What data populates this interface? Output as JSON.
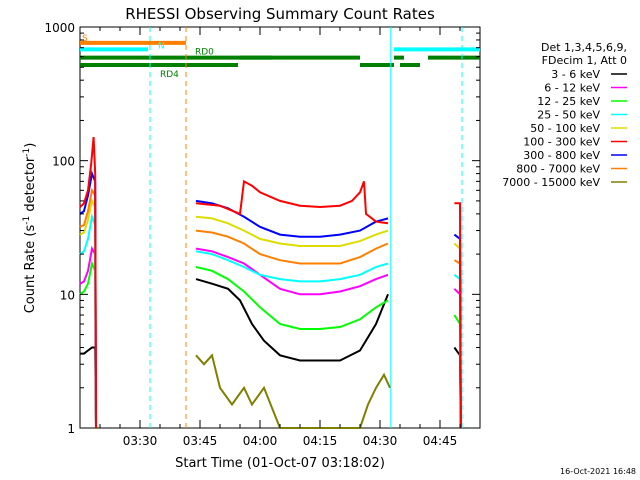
{
  "chart_data": {
    "type": "line",
    "title": "RHESSI Observing Summary Count Rates",
    "xlabel": "Start Time (01-Oct-07 03:18:02)",
    "ylabel_main": "Count Rate (s",
    "ylabel_sup1": "-1",
    "ylabel_mid": " detector",
    "ylabel_sup2": "-1",
    "ylabel_end": ")",
    "footer": "16-Oct-2021 16:48",
    "x_range_minutes": [
      0,
      100
    ],
    "y_scale": "log",
    "ylim": [
      1,
      1000
    ],
    "x_ticks": [
      {
        "m": 15,
        "label": "03:30"
      },
      {
        "m": 30,
        "label": "03:45"
      },
      {
        "m": 45,
        "label": "04:00"
      },
      {
        "m": 60,
        "label": "04:15"
      },
      {
        "m": 75,
        "label": "04:30"
      },
      {
        "m": 90,
        "label": "04:45"
      }
    ],
    "y_ticks": [
      {
        "v": 1,
        "label": "1"
      },
      {
        "v": 10,
        "label": "10"
      },
      {
        "v": 100,
        "label": "100"
      },
      {
        "v": 1000,
        "label": "1000"
      }
    ],
    "legend": {
      "header1": "Det 1,3,4,5,6,9,",
      "header2": "FDecim 1, Att 0",
      "entries": [
        {
          "label": "3 - 6 keV",
          "color": "#000000"
        },
        {
          "label": "6 - 12 keV",
          "color": "#ff00ff"
        },
        {
          "label": "12 - 25 keV",
          "color": "#00ff00"
        },
        {
          "label": "25 - 50 keV",
          "color": "#00ffff"
        },
        {
          "label": "50 - 100 keV",
          "color": "#dddd00"
        },
        {
          "label": "100 - 300 keV",
          "color": "#ff0000"
        },
        {
          "label": "300 - 800 keV",
          "color": "#0000ff"
        },
        {
          "label": "800 - 7000 keV",
          "color": "#ff8000"
        },
        {
          "label": "7000 - 15000 keV",
          "color": "#808000"
        }
      ]
    },
    "flag_bars": [
      {
        "label": "S",
        "color": "#ff8000",
        "level": 760,
        "segments": [
          [
            0,
            26.5
          ]
        ]
      },
      {
        "label": "N",
        "color": "#00ffff",
        "level": 680,
        "segments": [
          [
            0,
            17
          ],
          [
            78.5,
            100
          ]
        ]
      },
      {
        "label": "RD0",
        "color": "#008000",
        "level": 590,
        "segments": [
          [
            0,
            48
          ],
          [
            40,
            70
          ],
          [
            78.5,
            81
          ],
          [
            87,
            100
          ]
        ]
      },
      {
        "label": "RD4",
        "color": "#008000",
        "level": 520,
        "segments": [
          [
            0,
            39.5
          ],
          [
            70,
            78.5
          ],
          [
            80,
            85
          ]
        ]
      }
    ],
    "vlines": [
      {
        "m": 17.5,
        "color": "#00ffff",
        "dash": true
      },
      {
        "m": 26.5,
        "color": "#ff8000",
        "dash": true
      },
      {
        "m": 77.7,
        "color": "#00ffff",
        "dash": false
      },
      {
        "m": 95.5,
        "color": "#00ffff",
        "dash": true
      }
    ],
    "series": [
      {
        "name": "100 - 300 keV",
        "color": "#ff0000",
        "points": [
          [
            0,
            45
          ],
          [
            1,
            48
          ],
          [
            2,
            60
          ],
          [
            2.8,
            95
          ],
          [
            3.4,
            150
          ],
          [
            3.8,
            80
          ],
          [
            4,
            1
          ]
        ],
        "segments2": [
          [
            29,
            48
          ],
          [
            35,
            46
          ],
          [
            40,
            40
          ],
          [
            41,
            70
          ],
          [
            43,
            65
          ],
          [
            45,
            58
          ],
          [
            50,
            50
          ],
          [
            55,
            46
          ],
          [
            60,
            45
          ],
          [
            65,
            46
          ],
          [
            68,
            50
          ],
          [
            70,
            58
          ],
          [
            71,
            70
          ],
          [
            71.5,
            40
          ],
          [
            74,
            35
          ],
          [
            77,
            34
          ]
        ],
        "segments3": [
          [
            93.6,
            48
          ],
          [
            95,
            48
          ],
          [
            95.2,
            1
          ]
        ]
      },
      {
        "name": "300 - 800 keV",
        "color": "#0000ff",
        "points": [
          [
            0,
            40
          ],
          [
            1,
            42
          ],
          [
            2,
            55
          ],
          [
            3,
            80
          ],
          [
            3.8,
            70
          ],
          [
            4,
            1
          ]
        ],
        "segments2": [
          [
            29,
            50
          ],
          [
            33,
            48
          ],
          [
            37,
            44
          ],
          [
            41,
            38
          ],
          [
            45,
            32
          ],
          [
            50,
            28
          ],
          [
            55,
            27
          ],
          [
            60,
            27
          ],
          [
            65,
            28
          ],
          [
            70,
            30
          ],
          [
            74,
            35
          ],
          [
            77,
            37
          ]
        ],
        "segments3": [
          [
            93.6,
            28
          ],
          [
            95,
            26
          ],
          [
            95.2,
            1
          ]
        ]
      },
      {
        "name": "800 - 7000 keV",
        "color": "#ff8000",
        "points": [
          [
            0,
            32
          ],
          [
            1,
            33
          ],
          [
            2,
            42
          ],
          [
            3,
            60
          ],
          [
            3.8,
            55
          ],
          [
            4,
            1
          ]
        ],
        "segments2": [
          [
            29,
            30
          ],
          [
            33,
            29
          ],
          [
            37,
            27
          ],
          [
            41,
            24
          ],
          [
            45,
            20
          ],
          [
            50,
            18
          ],
          [
            55,
            17
          ],
          [
            60,
            17
          ],
          [
            65,
            17
          ],
          [
            70,
            19
          ],
          [
            74,
            22
          ],
          [
            77,
            24
          ]
        ],
        "segments3": [
          [
            93.6,
            18
          ],
          [
            95,
            17
          ],
          [
            95.2,
            1
          ]
        ]
      },
      {
        "name": "50 - 100 keV",
        "color": "#dddd00",
        "points": [
          [
            0,
            28
          ],
          [
            1,
            29
          ],
          [
            2,
            36
          ],
          [
            3,
            50
          ],
          [
            3.8,
            45
          ],
          [
            4,
            1
          ]
        ],
        "segments2": [
          [
            29,
            38
          ],
          [
            33,
            37
          ],
          [
            37,
            34
          ],
          [
            41,
            30
          ],
          [
            45,
            26
          ],
          [
            50,
            24
          ],
          [
            55,
            23
          ],
          [
            60,
            23
          ],
          [
            65,
            23
          ],
          [
            70,
            25
          ],
          [
            74,
            28
          ],
          [
            77,
            30
          ]
        ],
        "segments3": [
          [
            93.6,
            24
          ],
          [
            95,
            22
          ],
          [
            95.2,
            1
          ]
        ]
      },
      {
        "name": "25 - 50 keV",
        "color": "#00ffff",
        "points": [
          [
            0,
            20
          ],
          [
            1,
            21
          ],
          [
            2,
            26
          ],
          [
            3,
            38
          ],
          [
            3.8,
            33
          ],
          [
            4,
            1
          ]
        ],
        "segments2": [
          [
            29,
            21
          ],
          [
            33,
            20
          ],
          [
            37,
            18
          ],
          [
            41,
            16
          ],
          [
            45,
            14
          ],
          [
            50,
            13
          ],
          [
            55,
            12.5
          ],
          [
            60,
            12.5
          ],
          [
            65,
            13
          ],
          [
            70,
            14
          ],
          [
            74,
            16
          ],
          [
            77,
            17
          ]
        ],
        "segments3": [
          [
            93.6,
            14
          ],
          [
            95,
            13
          ],
          [
            95.2,
            1
          ]
        ]
      },
      {
        "name": "6 - 12 keV",
        "color": "#ff00ff",
        "points": [
          [
            0,
            12
          ],
          [
            1,
            12.5
          ],
          [
            2,
            15
          ],
          [
            3,
            22
          ],
          [
            3.8,
            20
          ],
          [
            4,
            1
          ]
        ],
        "segments2": [
          [
            29,
            22
          ],
          [
            33,
            21
          ],
          [
            37,
            19
          ],
          [
            41,
            17
          ],
          [
            45,
            14
          ],
          [
            50,
            11
          ],
          [
            55,
            10
          ],
          [
            60,
            10
          ],
          [
            65,
            10.5
          ],
          [
            70,
            11.5
          ],
          [
            74,
            13
          ],
          [
            77,
            14
          ]
        ],
        "segments3": [
          [
            93.6,
            11
          ],
          [
            95,
            10
          ],
          [
            95.2,
            1
          ]
        ]
      },
      {
        "name": "12 - 25 keV",
        "color": "#00ff00",
        "points": [
          [
            0,
            10
          ],
          [
            1,
            10.5
          ],
          [
            2,
            12
          ],
          [
            3,
            17
          ],
          [
            3.8,
            15
          ],
          [
            4,
            1
          ]
        ],
        "segments2": [
          [
            29,
            16
          ],
          [
            33,
            15
          ],
          [
            37,
            13
          ],
          [
            41,
            10.5
          ],
          [
            45,
            8
          ],
          [
            50,
            6
          ],
          [
            55,
            5.5
          ],
          [
            60,
            5.5
          ],
          [
            65,
            5.7
          ],
          [
            70,
            6.5
          ],
          [
            74,
            8
          ],
          [
            77,
            9
          ]
        ],
        "segments3": [
          [
            93.6,
            7
          ],
          [
            95,
            6
          ],
          [
            95.2,
            1
          ]
        ]
      },
      {
        "name": "3 - 6 keV",
        "color": "#000000",
        "points": [
          [
            0,
            3.6
          ],
          [
            1,
            3.6
          ],
          [
            2,
            3.8
          ],
          [
            3,
            4
          ],
          [
            3.8,
            4
          ],
          [
            4,
            1
          ]
        ],
        "segments2": [
          [
            29,
            13
          ],
          [
            33,
            12
          ],
          [
            37,
            11
          ],
          [
            40,
            9
          ],
          [
            43,
            6
          ],
          [
            46,
            4.5
          ],
          [
            50,
            3.5
          ],
          [
            55,
            3.2
          ],
          [
            60,
            3.2
          ],
          [
            65,
            3.2
          ],
          [
            70,
            3.8
          ],
          [
            74,
            6
          ],
          [
            77,
            10
          ]
        ],
        "segments3": [
          [
            93.6,
            4
          ],
          [
            95,
            3.5
          ],
          [
            95.2,
            1
          ]
        ]
      },
      {
        "name": "7000 - 15000 keV",
        "color": "#808000",
        "points": [
          [
            4,
            1
          ],
          [
            4.5,
            1
          ]
        ],
        "segments2": [
          [
            29,
            3.5
          ],
          [
            31,
            3
          ],
          [
            33,
            3.5
          ],
          [
            35,
            2
          ],
          [
            38,
            1.5
          ],
          [
            41,
            2
          ],
          [
            43,
            1.5
          ],
          [
            46,
            2
          ],
          [
            50,
            1
          ],
          [
            70,
            1
          ],
          [
            72,
            1.5
          ],
          [
            74,
            2
          ],
          [
            76,
            2.5
          ],
          [
            77.5,
            2
          ]
        ],
        "segments3": [
          [
            95,
            1
          ]
        ]
      }
    ]
  }
}
